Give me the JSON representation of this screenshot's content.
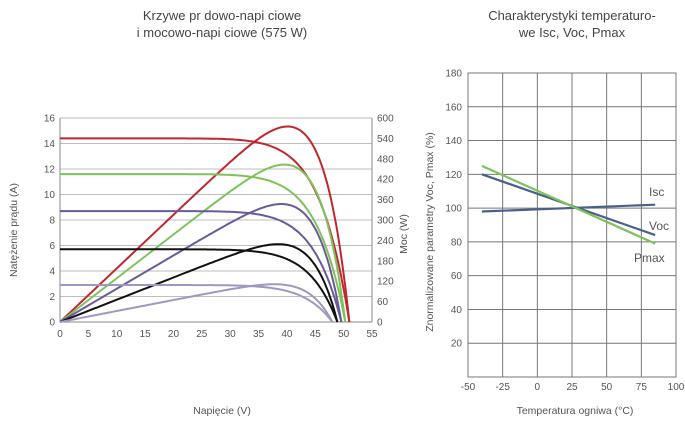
{
  "chart_data": [
    {
      "type": "line",
      "title": [
        "Krzywe pr dowo-napi ciowe",
        "i mocowo-napi ciowe (575 W)"
      ],
      "xlabel": "Napięcie (V)",
      "ylabel": "Natężenie prądu (A)",
      "y2label": "Moc (W)",
      "xlim": [
        0,
        55
      ],
      "ylim": [
        0,
        16
      ],
      "y2lim": [
        0,
        600
      ],
      "xticks": [
        "0",
        "5",
        "10",
        "15",
        "20",
        "25",
        "30",
        "35",
        "40",
        "45",
        "50",
        "55"
      ],
      "yticks": [
        "0",
        "2",
        "4",
        "6",
        "8",
        "10",
        "12",
        "14",
        "16"
      ],
      "y2ticks": [
        "0",
        "60",
        "120",
        "180",
        "240",
        "300",
        "360",
        "420",
        "480",
        "540",
        "600"
      ],
      "grid": "horizontal",
      "curves": [
        {
          "isc": 14.4,
          "voc": 51.0,
          "pmax": 575,
          "vmp": 42.2,
          "color": "#c0272d"
        },
        {
          "isc": 11.6,
          "voc": 50.3,
          "pmax": 463,
          "vmp": 42.0,
          "color": "#7dc25a"
        },
        {
          "isc": 8.7,
          "voc": 49.6,
          "pmax": 347,
          "vmp": 41.8,
          "color": "#6a5a97"
        },
        {
          "isc": 5.7,
          "voc": 48.9,
          "pmax": 229,
          "vmp": 41.6,
          "color": "#111111"
        },
        {
          "isc": 2.9,
          "voc": 48.0,
          "pmax": 111,
          "vmp": 41.2,
          "color": "#9d97c2"
        }
      ]
    },
    {
      "type": "line",
      "title": [
        "Charakterystyki temperaturo-",
        "we Isc, Voc, Pmax"
      ],
      "xlabel": "Temperatura ogniwa (°C)",
      "ylabel": "Znormalizowane parametry Voc, Pmax (%)",
      "xlim": [
        -50,
        100
      ],
      "ylim": [
        0,
        180
      ],
      "xticks": [
        "-50",
        "-25",
        "0",
        "25",
        "50",
        "75",
        "100"
      ],
      "yticks": [
        "20",
        "40",
        "60",
        "80",
        "100",
        "120",
        "140",
        "160",
        "180"
      ],
      "grid": "both",
      "series": [
        {
          "name": "Isc",
          "x": [
            -40,
            85
          ],
          "y": [
            98,
            102
          ],
          "color": "#4a5f8a"
        },
        {
          "name": "Voc",
          "x": [
            -40,
            85
          ],
          "y": [
            120,
            84
          ],
          "color": "#4a5f8a"
        },
        {
          "name": "Pmax",
          "x": [
            -40,
            85
          ],
          "y": [
            125,
            79
          ],
          "color": "#7dc25a"
        }
      ]
    }
  ]
}
